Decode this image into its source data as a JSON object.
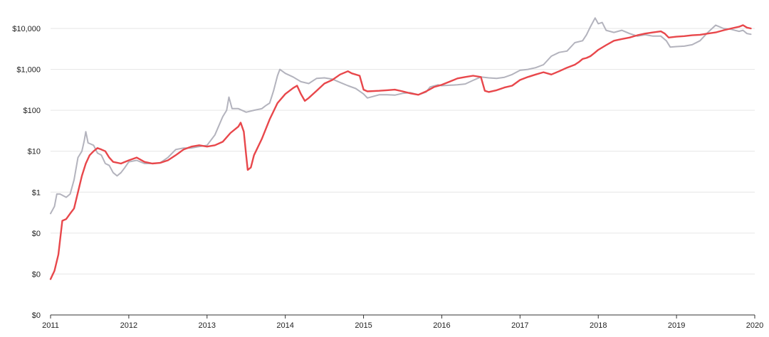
{
  "chart_data": {
    "type": "line",
    "title": "",
    "xlabel": "",
    "ylabel": "",
    "y_scale": "log",
    "grid": true,
    "legend": "none",
    "xlim": [
      2011.0,
      2020.0
    ],
    "ylim": [
      0.001,
      20000
    ],
    "y_ticks": [
      {
        "value": 0.001,
        "label": "$0"
      },
      {
        "value": 0.01,
        "label": "$0"
      },
      {
        "value": 0.1,
        "label": "$0"
      },
      {
        "value": 1,
        "label": "$1"
      },
      {
        "value": 10,
        "label": "$10"
      },
      {
        "value": 100,
        "label": "$100"
      },
      {
        "value": 1000,
        "label": "$1,000"
      },
      {
        "value": 10000,
        "label": "$10,000"
      }
    ],
    "x_ticks": [
      {
        "value": 2011,
        "label": "2011"
      },
      {
        "value": 2012,
        "label": "2012"
      },
      {
        "value": 2013,
        "label": "2013"
      },
      {
        "value": 2014,
        "label": "2014"
      },
      {
        "value": 2015,
        "label": "2015"
      },
      {
        "value": 2016,
        "label": "2016"
      },
      {
        "value": 2017,
        "label": "2017"
      },
      {
        "value": 2018,
        "label": "2018"
      },
      {
        "value": 2019,
        "label": "2019"
      },
      {
        "value": 2020,
        "label": "2020"
      }
    ],
    "series": [
      {
        "color": "#b3b3bd",
        "points": [
          [
            2011.0,
            0.3
          ],
          [
            2011.05,
            0.45
          ],
          [
            2011.08,
            0.9
          ],
          [
            2011.12,
            0.9
          ],
          [
            2011.2,
            0.75
          ],
          [
            2011.25,
            0.9
          ],
          [
            2011.3,
            2
          ],
          [
            2011.35,
            7
          ],
          [
            2011.4,
            10
          ],
          [
            2011.43,
            18
          ],
          [
            2011.45,
            30
          ],
          [
            2011.48,
            16
          ],
          [
            2011.55,
            14
          ],
          [
            2011.6,
            9
          ],
          [
            2011.65,
            8
          ],
          [
            2011.7,
            5
          ],
          [
            2011.75,
            4.5
          ],
          [
            2011.8,
            3
          ],
          [
            2011.85,
            2.5
          ],
          [
            2011.9,
            3
          ],
          [
            2011.95,
            4
          ],
          [
            2012.0,
            5.5
          ],
          [
            2012.1,
            6
          ],
          [
            2012.2,
            5
          ],
          [
            2012.3,
            5
          ],
          [
            2012.4,
            5.2
          ],
          [
            2012.5,
            7
          ],
          [
            2012.6,
            11
          ],
          [
            2012.7,
            12
          ],
          [
            2012.8,
            12
          ],
          [
            2012.9,
            13
          ],
          [
            2013.0,
            14
          ],
          [
            2013.1,
            25
          ],
          [
            2013.2,
            70
          ],
          [
            2013.25,
            100
          ],
          [
            2013.28,
            210
          ],
          [
            2013.32,
            110
          ],
          [
            2013.4,
            110
          ],
          [
            2013.5,
            90
          ],
          [
            2013.6,
            100
          ],
          [
            2013.7,
            110
          ],
          [
            2013.75,
            130
          ],
          [
            2013.8,
            150
          ],
          [
            2013.85,
            300
          ],
          [
            2013.9,
            700
          ],
          [
            2013.93,
            1000
          ],
          [
            2014.0,
            800
          ],
          [
            2014.1,
            650
          ],
          [
            2014.2,
            500
          ],
          [
            2014.3,
            450
          ],
          [
            2014.4,
            600
          ],
          [
            2014.5,
            620
          ],
          [
            2014.6,
            580
          ],
          [
            2014.7,
            480
          ],
          [
            2014.8,
            400
          ],
          [
            2014.9,
            340
          ],
          [
            2015.0,
            250
          ],
          [
            2015.05,
            200
          ],
          [
            2015.2,
            240
          ],
          [
            2015.3,
            240
          ],
          [
            2015.4,
            235
          ],
          [
            2015.5,
            260
          ],
          [
            2015.6,
            270
          ],
          [
            2015.7,
            240
          ],
          [
            2015.8,
            280
          ],
          [
            2015.85,
            370
          ],
          [
            2015.95,
            420
          ],
          [
            2016.0,
            400
          ],
          [
            2016.1,
            410
          ],
          [
            2016.2,
            420
          ],
          [
            2016.3,
            440
          ],
          [
            2016.4,
            540
          ],
          [
            2016.5,
            650
          ],
          [
            2016.6,
            620
          ],
          [
            2016.7,
            600
          ],
          [
            2016.8,
            640
          ],
          [
            2016.9,
            750
          ],
          [
            2017.0,
            950
          ],
          [
            2017.1,
            1000
          ],
          [
            2017.2,
            1100
          ],
          [
            2017.3,
            1300
          ],
          [
            2017.4,
            2100
          ],
          [
            2017.5,
            2600
          ],
          [
            2017.6,
            2800
          ],
          [
            2017.7,
            4500
          ],
          [
            2017.8,
            5000
          ],
          [
            2017.85,
            7000
          ],
          [
            2017.9,
            11000
          ],
          [
            2017.96,
            18000
          ],
          [
            2018.0,
            13000
          ],
          [
            2018.05,
            14000
          ],
          [
            2018.1,
            9000
          ],
          [
            2018.2,
            8000
          ],
          [
            2018.3,
            9000
          ],
          [
            2018.4,
            7500
          ],
          [
            2018.5,
            6500
          ],
          [
            2018.6,
            7000
          ],
          [
            2018.7,
            6500
          ],
          [
            2018.8,
            6500
          ],
          [
            2018.87,
            5000
          ],
          [
            2018.92,
            3500
          ],
          [
            2019.0,
            3600
          ],
          [
            2019.1,
            3700
          ],
          [
            2019.2,
            4000
          ],
          [
            2019.3,
            5000
          ],
          [
            2019.4,
            8000
          ],
          [
            2019.5,
            12000
          ],
          [
            2019.6,
            10000
          ],
          [
            2019.7,
            9500
          ],
          [
            2019.8,
            8500
          ],
          [
            2019.85,
            9000
          ],
          [
            2019.9,
            7500
          ],
          [
            2019.95,
            7200
          ]
        ]
      },
      {
        "color": "#e8474b",
        "points": [
          [
            2011.0,
            0.0075
          ],
          [
            2011.05,
            0.012
          ],
          [
            2011.1,
            0.03
          ],
          [
            2011.15,
            0.2
          ],
          [
            2011.2,
            0.22
          ],
          [
            2011.25,
            0.3
          ],
          [
            2011.3,
            0.4
          ],
          [
            2011.35,
            1
          ],
          [
            2011.4,
            2.5
          ],
          [
            2011.45,
            5
          ],
          [
            2011.5,
            8
          ],
          [
            2011.55,
            10
          ],
          [
            2011.6,
            12
          ],
          [
            2011.65,
            11
          ],
          [
            2011.7,
            10
          ],
          [
            2011.75,
            7
          ],
          [
            2011.8,
            5.5
          ],
          [
            2011.9,
            5
          ],
          [
            2012.0,
            6
          ],
          [
            2012.1,
            7
          ],
          [
            2012.2,
            5.5
          ],
          [
            2012.3,
            5
          ],
          [
            2012.4,
            5.2
          ],
          [
            2012.5,
            6
          ],
          [
            2012.6,
            8
          ],
          [
            2012.7,
            11
          ],
          [
            2012.8,
            13
          ],
          [
            2012.9,
            14
          ],
          [
            2013.0,
            13
          ],
          [
            2013.1,
            14
          ],
          [
            2013.2,
            17
          ],
          [
            2013.3,
            28
          ],
          [
            2013.4,
            40
          ],
          [
            2013.43,
            50
          ],
          [
            2013.47,
            30
          ],
          [
            2013.5,
            8
          ],
          [
            2013.52,
            3.5
          ],
          [
            2013.56,
            4
          ],
          [
            2013.6,
            8
          ],
          [
            2013.7,
            20
          ],
          [
            2013.8,
            60
          ],
          [
            2013.9,
            150
          ],
          [
            2014.0,
            250
          ],
          [
            2014.1,
            350
          ],
          [
            2014.15,
            400
          ],
          [
            2014.2,
            250
          ],
          [
            2014.25,
            170
          ],
          [
            2014.3,
            200
          ],
          [
            2014.4,
            300
          ],
          [
            2014.5,
            450
          ],
          [
            2014.6,
            550
          ],
          [
            2014.7,
            750
          ],
          [
            2014.8,
            900
          ],
          [
            2014.85,
            800
          ],
          [
            2014.95,
            700
          ],
          [
            2015.0,
            320
          ],
          [
            2015.05,
            290
          ],
          [
            2015.2,
            300
          ],
          [
            2015.3,
            310
          ],
          [
            2015.4,
            320
          ],
          [
            2015.5,
            290
          ],
          [
            2015.6,
            260
          ],
          [
            2015.7,
            240
          ],
          [
            2015.8,
            290
          ],
          [
            2015.9,
            370
          ],
          [
            2016.0,
            420
          ],
          [
            2016.1,
            500
          ],
          [
            2016.2,
            600
          ],
          [
            2016.3,
            650
          ],
          [
            2016.4,
            700
          ],
          [
            2016.5,
            650
          ],
          [
            2016.55,
            300
          ],
          [
            2016.6,
            280
          ],
          [
            2016.7,
            310
          ],
          [
            2016.8,
            360
          ],
          [
            2016.9,
            400
          ],
          [
            2017.0,
            550
          ],
          [
            2017.1,
            650
          ],
          [
            2017.2,
            750
          ],
          [
            2017.3,
            850
          ],
          [
            2017.4,
            750
          ],
          [
            2017.5,
            900
          ],
          [
            2017.6,
            1100
          ],
          [
            2017.7,
            1300
          ],
          [
            2017.75,
            1500
          ],
          [
            2017.8,
            1800
          ],
          [
            2017.85,
            1900
          ],
          [
            2017.9,
            2100
          ],
          [
            2017.95,
            2500
          ],
          [
            2018.0,
            3000
          ],
          [
            2018.1,
            3900
          ],
          [
            2018.2,
            5000
          ],
          [
            2018.3,
            5500
          ],
          [
            2018.4,
            6000
          ],
          [
            2018.5,
            6800
          ],
          [
            2018.6,
            7500
          ],
          [
            2018.7,
            8000
          ],
          [
            2018.8,
            8500
          ],
          [
            2018.85,
            7500
          ],
          [
            2018.9,
            6000
          ],
          [
            2019.0,
            6300
          ],
          [
            2019.1,
            6500
          ],
          [
            2019.2,
            6800
          ],
          [
            2019.3,
            7000
          ],
          [
            2019.4,
            7500
          ],
          [
            2019.5,
            8000
          ],
          [
            2019.6,
            9000
          ],
          [
            2019.7,
            10000
          ],
          [
            2019.8,
            11000
          ],
          [
            2019.85,
            12000
          ],
          [
            2019.9,
            10500
          ],
          [
            2019.95,
            10000
          ]
        ]
      }
    ]
  }
}
